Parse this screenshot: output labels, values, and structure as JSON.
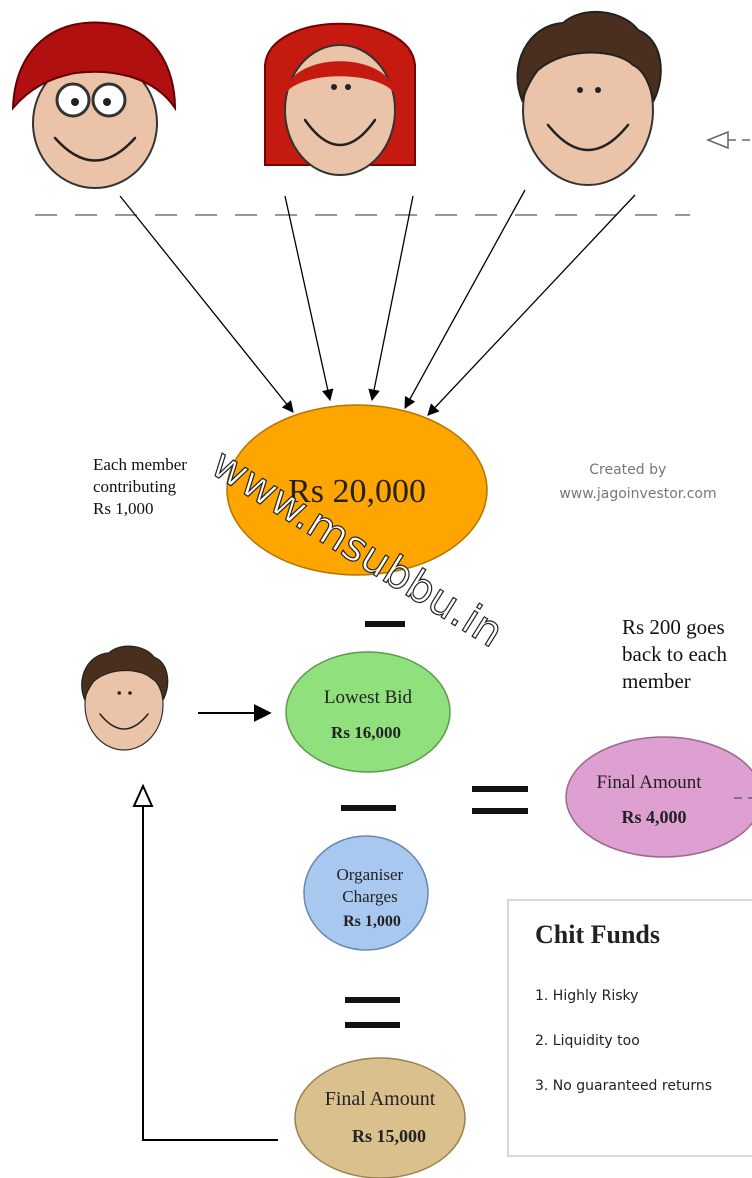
{
  "watermark": "www.msubbu.in",
  "contribution_note": [
    "Each member",
    "contributing",
    "Rs 1,000"
  ],
  "credit": [
    "Created by",
    "www.jagoinvestor.com"
  ],
  "pool": {
    "amount": "Rs 20,000"
  },
  "lowest_bid": {
    "label": "Lowest Bid",
    "amount": "Rs 16,000"
  },
  "refund_note": [
    "Rs 200 goes",
    "back to each",
    "member"
  ],
  "final_amount_members": {
    "label": "Final Amount",
    "amount": "Rs 4,000"
  },
  "organiser_charges": {
    "label": [
      "Organiser",
      "Charges"
    ],
    "amount": "Rs 1,000"
  },
  "final_amount_winner": {
    "label": "Final Amount",
    "amount": "Rs 15,000"
  },
  "info_box": {
    "title": "Chit Funds",
    "items": [
      "1. Highly Risky",
      "2. Liquidity too",
      "3. No guaranteed returns"
    ]
  }
}
